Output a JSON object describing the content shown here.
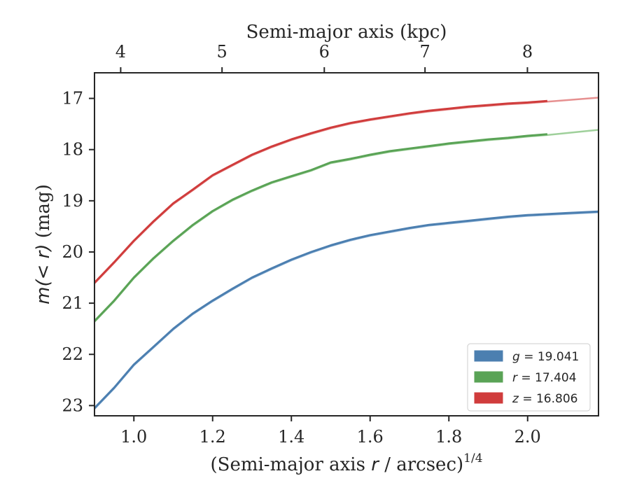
{
  "chart_data": {
    "type": "line",
    "xlabel_base": "(Semi-major axis ",
    "xlabel_var": "r",
    "xlabel_rest": " / arcsec)",
    "xlabel_sup": "1/4",
    "ylabel_var": "m(< r)",
    "ylabel_unit": " (mag)",
    "top_xlabel": "Semi-major axis (kpc)",
    "xlim": [
      0.9,
      2.18
    ],
    "ylim": [
      23.2,
      16.5
    ],
    "yinverted": true,
    "xticks": [
      1.0,
      1.2,
      1.4,
      1.6,
      1.8,
      2.0
    ],
    "xtick_labels": [
      "1.0",
      "1.2",
      "1.4",
      "1.6",
      "1.8",
      "2.0"
    ],
    "yticks": [
      17,
      18,
      19,
      20,
      21,
      22,
      23
    ],
    "ytick_labels": [
      "17",
      "18",
      "19",
      "20",
      "21",
      "22",
      "23"
    ],
    "top_ticks_x": [
      0.9665,
      1.2239,
      1.4836,
      1.7394,
      1.9995
    ],
    "top_tick_labels": [
      "4",
      "5",
      "6",
      "7",
      "8"
    ],
    "grid": false,
    "legend_position": "bottom-right",
    "series": [
      {
        "name": "g",
        "legend_value": " = 19.041",
        "color": "#4c7fb0",
        "fit_color": "#8fb3d6",
        "x": [
          0.9,
          0.95,
          1.0,
          1.05,
          1.1,
          1.15,
          1.2,
          1.25,
          1.3,
          1.35,
          1.4,
          1.45,
          1.5,
          1.55,
          1.6,
          1.65,
          1.7,
          1.75,
          1.8,
          1.85,
          1.9,
          1.95,
          2.0,
          2.05,
          2.1,
          2.18
        ],
        "y": [
          23.05,
          22.65,
          22.2,
          21.85,
          21.5,
          21.2,
          20.95,
          20.72,
          20.5,
          20.32,
          20.15,
          20.0,
          19.87,
          19.76,
          19.67,
          19.6,
          19.53,
          19.47,
          19.43,
          19.39,
          19.35,
          19.31,
          19.28,
          19.26,
          19.24,
          19.21
        ]
      },
      {
        "name": "r",
        "legend_value": " = 17.404",
        "color": "#5aa356",
        "fit_color": "#9fd09b",
        "x": [
          0.9,
          0.95,
          1.0,
          1.05,
          1.1,
          1.15,
          1.2,
          1.25,
          1.3,
          1.35,
          1.4,
          1.45,
          1.5,
          1.55,
          1.6,
          1.65,
          1.7,
          1.75,
          1.8,
          1.85,
          1.9,
          1.95,
          2.0,
          2.05
        ],
        "y": [
          21.35,
          20.95,
          20.5,
          20.12,
          19.78,
          19.47,
          19.2,
          18.98,
          18.8,
          18.64,
          18.52,
          18.4,
          18.25,
          18.18,
          18.1,
          18.03,
          17.98,
          17.93,
          17.88,
          17.84,
          17.8,
          17.77,
          17.73,
          17.7
        ]
      },
      {
        "name": "z",
        "legend_value": " = 16.806",
        "color": "#d03c3c",
        "fit_color": "#e69090",
        "x": [
          0.9,
          0.95,
          1.0,
          1.05,
          1.1,
          1.15,
          1.2,
          1.25,
          1.3,
          1.35,
          1.4,
          1.45,
          1.5,
          1.55,
          1.6,
          1.65,
          1.7,
          1.75,
          1.8,
          1.85,
          1.9,
          1.95,
          2.0,
          2.05
        ],
        "y": [
          20.6,
          20.2,
          19.78,
          19.4,
          19.05,
          18.78,
          18.5,
          18.3,
          18.1,
          17.94,
          17.8,
          17.68,
          17.57,
          17.48,
          17.41,
          17.35,
          17.29,
          17.24,
          17.2,
          17.16,
          17.13,
          17.1,
          17.08,
          17.05
        ]
      }
    ],
    "fit_x_extension": [
      2.05,
      2.18
    ],
    "fit_y_extension": {
      "g": [
        19.26,
        19.21
      ],
      "r": [
        17.7,
        17.6
      ],
      "z": [
        17.05,
        16.97
      ]
    }
  }
}
